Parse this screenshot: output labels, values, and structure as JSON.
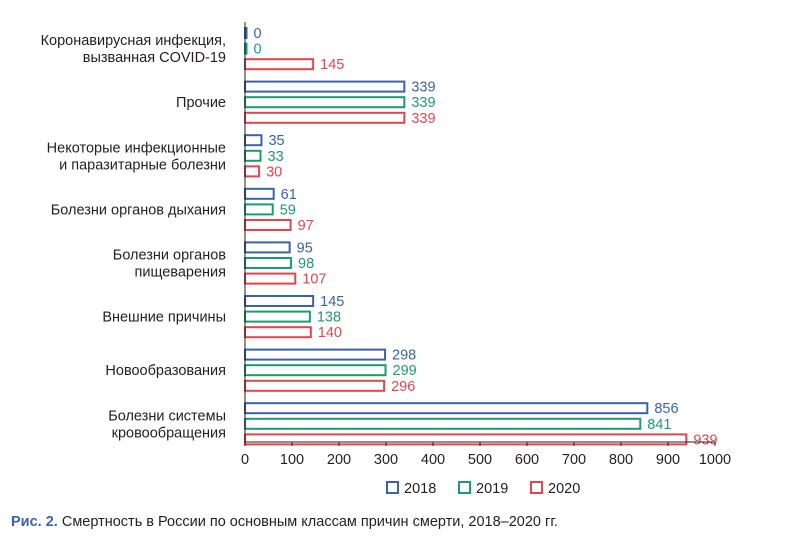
{
  "chart_data": {
    "type": "bar",
    "orientation": "horizontal",
    "categories": [
      [
        "Коронавирусная инфекция,",
        "вызванная COVID-19"
      ],
      [
        "Прочие"
      ],
      [
        "Некоторые инфекционные",
        "и паразитарные болезни"
      ],
      [
        "Болезни органов дыхания"
      ],
      [
        "Болезни органов",
        "пищеварения"
      ],
      [
        "Внешние причины"
      ],
      [
        "Новообразования"
      ],
      [
        "Болезни системы",
        "кровообращения"
      ]
    ],
    "series": [
      {
        "name": "2018",
        "color": "#3b63a3",
        "values": [
          0,
          339,
          35,
          61,
          95,
          145,
          298,
          856
        ]
      },
      {
        "name": "2019",
        "color": "#1f9b6b",
        "values": [
          0,
          339,
          33,
          59,
          98,
          138,
          299,
          841
        ]
      },
      {
        "name": "2020",
        "color": "#e0464e",
        "values": [
          145,
          339,
          30,
          97,
          107,
          140,
          296,
          939
        ]
      }
    ],
    "xlim": [
      0,
      1000
    ],
    "xticks": [
      0,
      100,
      200,
      300,
      400,
      500,
      600,
      700,
      800,
      900,
      1000
    ],
    "legend_position": "bottom",
    "grid": false
  },
  "caption": {
    "prefix": "Рис. 2.",
    "text": " Смертность в России по основным классам причин смерти, 2018–2020 гг."
  }
}
